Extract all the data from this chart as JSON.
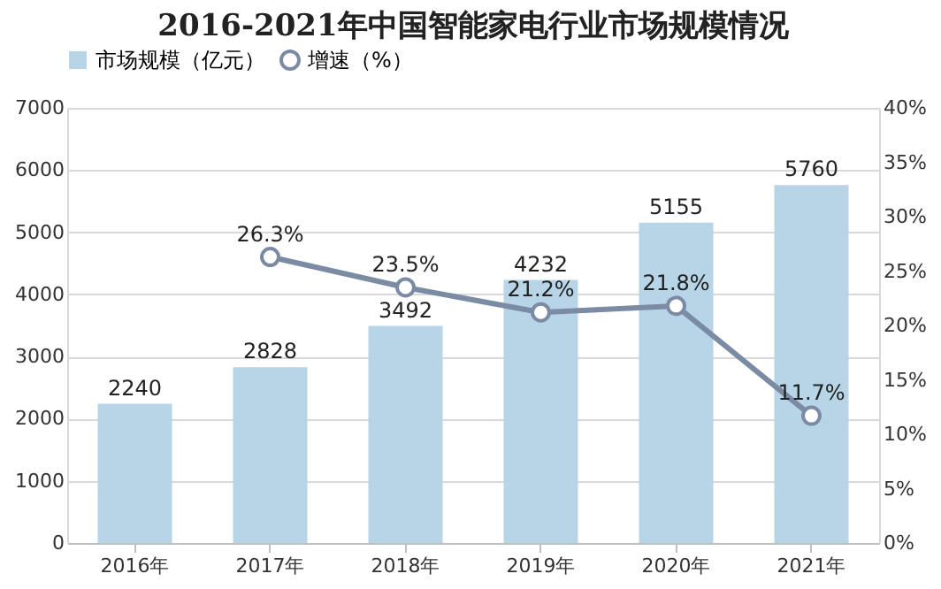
{
  "chart_data": {
    "type": "bar",
    "title": "2016-2021年中国智能家电行业市场规模情况",
    "categories": [
      "2016年",
      "2017年",
      "2018年",
      "2019年",
      "2020年",
      "2021年"
    ],
    "series": [
      {
        "name": "市场规模（亿元）",
        "color": "#b7d5e6",
        "values": [
          2240,
          2828,
          3492,
          4232,
          5155,
          5760
        ]
      },
      {
        "name": "增速（%）",
        "type": "line",
        "axis": "y2",
        "color": "#7a8ba3",
        "values": [
          null,
          26.3,
          23.5,
          21.2,
          21.8,
          11.7
        ],
        "value_labels": [
          null,
          "26.3%",
          "23.5%",
          "21.2%",
          "21.8%",
          "11.7%"
        ]
      }
    ],
    "ylim": [
      0,
      7000
    ],
    "yticks": [
      0,
      1000,
      2000,
      3000,
      4000,
      5000,
      6000,
      7000
    ],
    "y2lim": [
      0,
      40
    ],
    "y2ticks": [
      {
        "value": 0,
        "label": "0%"
      },
      {
        "value": 5,
        "label": "5%"
      },
      {
        "value": 10,
        "label": "10%"
      },
      {
        "value": 15,
        "label": "15%"
      },
      {
        "value": 20,
        "label": "20%"
      },
      {
        "value": 25,
        "label": "25%"
      },
      {
        "value": 30,
        "label": "30%"
      },
      {
        "value": 35,
        "label": "35%"
      },
      {
        "value": 40,
        "label": "40%"
      }
    ],
    "data_labels": true,
    "grid": "y",
    "legend": "top",
    "marker": "circle"
  }
}
